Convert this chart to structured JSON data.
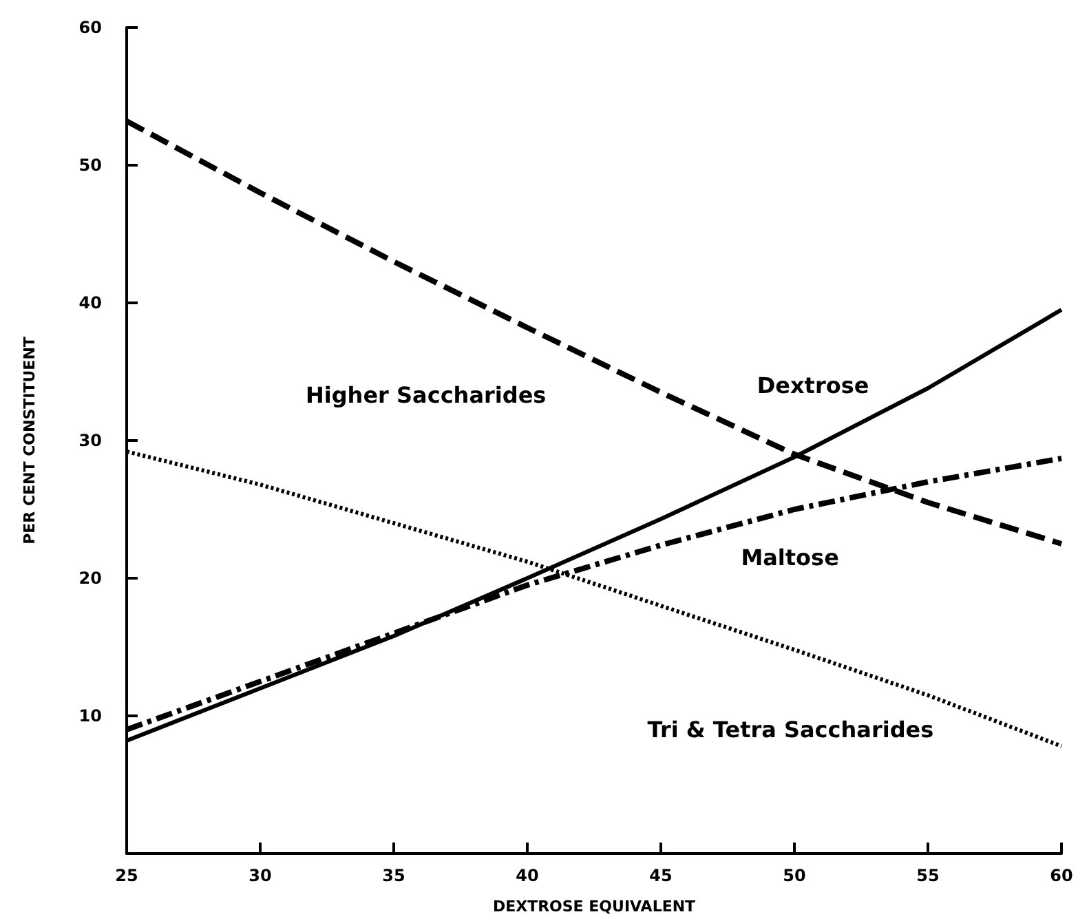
{
  "chart_data": {
    "type": "line",
    "xlabel": "DEXTROSE EQUIVALENT",
    "ylabel": "PER CENT CONSTITUENT",
    "x": [
      25,
      30,
      35,
      40,
      45,
      50,
      55,
      60
    ],
    "series": [
      {
        "name": "Higher Saccharides",
        "color": "#000000",
        "line_style": "dashed",
        "values": [
          53.2,
          48,
          43,
          38.2,
          33.5,
          29,
          25.5,
          22.5
        ]
      },
      {
        "name": "Dextrose",
        "color": "#000000",
        "line_style": "solid",
        "values": [
          8.2,
          12,
          15.8,
          20,
          24.3,
          28.8,
          33.8,
          39.5
        ]
      },
      {
        "name": "Maltose",
        "color": "#000000",
        "line_style": "dashdot",
        "values": [
          9,
          12.5,
          16,
          19.5,
          22.4,
          25,
          27,
          28.7
        ]
      },
      {
        "name": "Tri & Tetra Saccharides",
        "color": "#000000",
        "line_style": "dotted",
        "values": [
          29.2,
          26.8,
          24,
          21.2,
          18,
          14.8,
          11.5,
          7.8
        ]
      }
    ],
    "xlim": [
      25,
      60
    ],
    "xticks": [
      25,
      30,
      35,
      40,
      45,
      50,
      55,
      60
    ],
    "ylim": [
      0,
      60
    ],
    "yticks": [
      10,
      20,
      30,
      40,
      50,
      60
    ],
    "grid": false,
    "legend": false,
    "marker": "none"
  }
}
